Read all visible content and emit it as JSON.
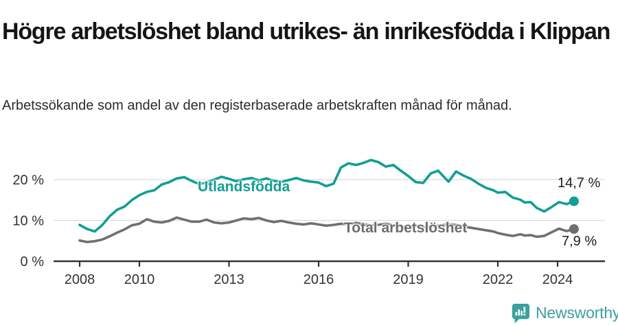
{
  "header": {
    "title": "Högre arbetslöshet bland utrikes- än inrikesfödda i Klippan",
    "subtitle": "Arbetssökande som andel av den registerbaserade arbetskraften månad för månad."
  },
  "chart_data": {
    "type": "line",
    "title": "Högre arbetslöshet bland utrikes- än inrikesfödda i Klippan",
    "subtitle": "Arbetssökande som andel av den registerbaserade arbetskraften månad för månad.",
    "xlabel": "",
    "ylabel": "",
    "xlim": [
      2008,
      2024.6
    ],
    "ylim": [
      0,
      26
    ],
    "grid": true,
    "legend_position": "inline-labels",
    "x": [
      2008.0,
      2008.25,
      2008.5,
      2008.75,
      2009.0,
      2009.25,
      2009.5,
      2009.75,
      2010.0,
      2010.25,
      2010.5,
      2010.75,
      2011.0,
      2011.25,
      2011.5,
      2011.75,
      2012.0,
      2012.25,
      2012.5,
      2012.75,
      2013.0,
      2013.25,
      2013.5,
      2013.75,
      2014.0,
      2014.25,
      2014.5,
      2014.75,
      2015.0,
      2015.25,
      2015.5,
      2015.75,
      2016.0,
      2016.25,
      2016.5,
      2016.75,
      2017.0,
      2017.25,
      2017.5,
      2017.75,
      2018.0,
      2018.25,
      2018.5,
      2018.75,
      2019.0,
      2019.25,
      2019.5,
      2019.75,
      2020.0,
      2020.35,
      2020.6,
      2020.85,
      2021.1,
      2021.35,
      2021.6,
      2021.85,
      2022.0,
      2022.25,
      2022.5,
      2022.75,
      2022.9,
      2023.1,
      2023.3,
      2023.55,
      2023.8,
      2024.05,
      2024.3,
      2024.55
    ],
    "series": [
      {
        "name": "Utlandsfödda",
        "color": "#119e95",
        "end_label": "14,7 %",
        "end_value": 14.7,
        "values": [
          8.9,
          7.9,
          7.3,
          8.8,
          11.0,
          12.6,
          13.4,
          15.0,
          16.2,
          17.0,
          17.4,
          18.8,
          19.4,
          20.3,
          20.6,
          19.7,
          18.9,
          19.3,
          20.0,
          20.7,
          20.2,
          19.6,
          20.1,
          20.4,
          19.8,
          20.3,
          19.7,
          19.4,
          19.9,
          20.4,
          19.8,
          19.5,
          19.3,
          18.4,
          19.0,
          23.0,
          24.0,
          23.6,
          24.1,
          24.8,
          24.3,
          23.2,
          23.6,
          22.2,
          20.9,
          19.4,
          19.2,
          21.5,
          22.2,
          19.5,
          22.0,
          21.0,
          20.2,
          19.0,
          18.0,
          17.4,
          16.8,
          17.0,
          15.6,
          15.1,
          14.4,
          14.5,
          13.1,
          12.2,
          13.3,
          14.5,
          14.0,
          14.7
        ]
      },
      {
        "name": "Total arbetslöshet",
        "color": "#6f6f6f",
        "end_label": "7,9 %",
        "end_value": 7.9,
        "values": [
          5.1,
          4.7,
          4.9,
          5.3,
          6.1,
          7.0,
          7.8,
          8.8,
          9.2,
          10.3,
          9.7,
          9.5,
          9.9,
          10.7,
          10.2,
          9.7,
          9.7,
          10.2,
          9.5,
          9.3,
          9.5,
          10.0,
          10.5,
          10.3,
          10.6,
          10.0,
          9.6,
          9.9,
          9.5,
          9.2,
          9.0,
          9.3,
          9.0,
          8.7,
          8.9,
          9.2,
          9.0,
          9.4,
          9.1,
          8.8,
          8.9,
          9.2,
          8.8,
          8.5,
          8.4,
          8.7,
          8.3,
          8.5,
          8.7,
          9.1,
          8.9,
          8.5,
          8.2,
          7.9,
          7.6,
          7.3,
          6.9,
          6.5,
          6.2,
          6.6,
          6.3,
          6.4,
          6.0,
          6.2,
          7.1,
          8.0,
          7.4,
          7.9
        ]
      }
    ],
    "y_ticks": [
      {
        "label": "20 %",
        "value": 20
      },
      {
        "label": "10 %",
        "value": 10
      },
      {
        "label": "0 %",
        "value": 0
      }
    ],
    "x_ticks": [
      {
        "label": "2008",
        "t": 2008
      },
      {
        "label": "2010",
        "t": 2010
      },
      {
        "label": "2013",
        "t": 2013
      },
      {
        "label": "2016",
        "t": 2016
      },
      {
        "label": "2019",
        "t": 2019
      },
      {
        "label": "2022",
        "t": 2022
      },
      {
        "label": "2024",
        "t": 2024
      }
    ],
    "colors": {
      "grid": "#dcdcdc",
      "axis": "#333333",
      "tick_text": "#333333"
    }
  },
  "footer": {
    "brand": "Newsworthy",
    "brand_color": "#3aa19c",
    "logo_icon": "bar-chart-speech-bubble"
  }
}
